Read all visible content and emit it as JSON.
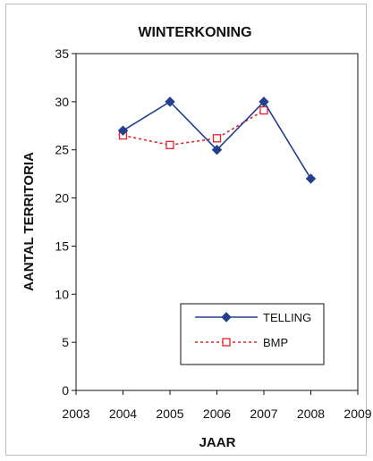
{
  "chart_data": {
    "type": "line",
    "title": "WINTERKONING",
    "xlabel": "JAAR",
    "ylabel": "AANTAL TERRITORIA",
    "xlim": [
      2003,
      2009
    ],
    "ylim": [
      0,
      35
    ],
    "xticks": [
      "2003",
      "2004",
      "2005",
      "2006",
      "2007",
      "2008",
      "2009"
    ],
    "yticks": [
      "0",
      "5",
      "10",
      "15",
      "20",
      "25",
      "30",
      "35"
    ],
    "grid": false,
    "legend_position": "bottom-right",
    "series": [
      {
        "name": "TELLING",
        "color": "#23408e",
        "marker": "diamond",
        "line": "solid",
        "x": [
          2004,
          2005,
          2006,
          2007,
          2008
        ],
        "y": [
          27,
          30,
          25,
          30,
          22
        ]
      },
      {
        "name": "BMP",
        "color": "#e8202a",
        "marker": "square-open",
        "line": "dotted",
        "x": [
          2004,
          2005,
          2006,
          2007
        ],
        "y": [
          26.5,
          25.5,
          26.2,
          29.1
        ]
      }
    ]
  }
}
